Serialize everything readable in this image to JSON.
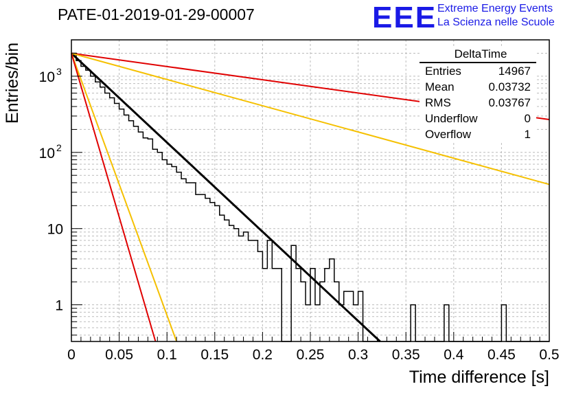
{
  "title": "PATE-01-2019-01-29-00007",
  "logo": {
    "letters": "EEE",
    "line1": "Extreme Energy Events",
    "line2": "La Scienza nelle Scuole",
    "color": "#1a1ae6"
  },
  "stats": {
    "name": "DeltaTime",
    "rows": [
      {
        "label": "Entries",
        "value": "14967"
      },
      {
        "label": "Mean",
        "value": "0.03732"
      },
      {
        "label": "RMS",
        "value": "0.03767"
      },
      {
        "label": "Underflow",
        "value": "0"
      },
      {
        "label": "Overflow",
        "value": "1"
      }
    ]
  },
  "chart_data": {
    "type": "histogram",
    "scale_y": "log",
    "xlabel": "Time difference [s]",
    "ylabel": "Entries/bin",
    "xlim": [
      0,
      0.5
    ],
    "ylim": [
      0.33,
      3000
    ],
    "grid": true,
    "x_ticks": [
      "0",
      "0.05",
      "0.1",
      "0.15",
      "0.2",
      "0.25",
      "0.3",
      "0.35",
      "0.4",
      "0.45",
      "0.5"
    ],
    "y_ticks": [
      {
        "value": 1,
        "base": "1",
        "exp": ""
      },
      {
        "value": 10,
        "base": "10",
        "exp": ""
      },
      {
        "value": 100,
        "base": "10",
        "exp": "2"
      },
      {
        "value": 1000,
        "base": "10",
        "exp": "3"
      }
    ],
    "bin_width": 0.005,
    "bin_values": [
      2000,
      1600,
      1350,
      1200,
      1000,
      840,
      720,
      600,
      520,
      440,
      370,
      310,
      260,
      220,
      185,
      155,
      150,
      110,
      100,
      80,
      70,
      65,
      55,
      45,
      40,
      40,
      28,
      28,
      25,
      22,
      20,
      15,
      13,
      11,
      10,
      8,
      9,
      7,
      7,
      5,
      5,
      4,
      4,
      3.5,
      3,
      2.5,
      2,
      2,
      1.5,
      1.5,
      1.5,
      1.5,
      1.3,
      1.1,
      1,
      0,
      0,
      0,
      0,
      0,
      0,
      0,
      0,
      0,
      0,
      0,
      0,
      0,
      0,
      0,
      0,
      0,
      0,
      0,
      0,
      0,
      0,
      0,
      0,
      0,
      0,
      0,
      0,
      0,
      0,
      0,
      0,
      0,
      0,
      0,
      0,
      0,
      0,
      0,
      0,
      0,
      0,
      0,
      0,
      0
    ],
    "bin_overrides": [
      [
        0.195,
        5
      ],
      [
        0.2,
        3
      ],
      [
        0.205,
        7
      ],
      [
        0.21,
        3
      ],
      [
        0.215,
        3
      ],
      [
        0.22,
        0
      ],
      [
        0.225,
        0.33
      ],
      [
        0.23,
        6
      ],
      [
        0.235,
        3
      ],
      [
        0.24,
        2
      ],
      [
        0.245,
        1
      ],
      [
        0.25,
        3
      ],
      [
        0.255,
        1
      ],
      [
        0.26,
        2
      ],
      [
        0.265,
        3
      ],
      [
        0.27,
        4
      ],
      [
        0.275,
        2
      ],
      [
        0.28,
        1
      ],
      [
        0.285,
        1.5
      ],
      [
        0.29,
        1.5
      ],
      [
        0.295,
        1
      ],
      [
        0.3,
        1.5
      ],
      [
        0.305,
        0
      ],
      [
        0.31,
        0
      ],
      [
        0.315,
        0
      ],
      [
        0.355,
        1
      ],
      [
        0.39,
        1
      ],
      [
        0.45,
        1
      ]
    ],
    "series": [
      {
        "color": "#000000",
        "x": [
          0,
          0.323
        ],
        "y": [
          2000,
          0.33
        ],
        "width": 3
      },
      {
        "color": "#e00000",
        "x": [
          0,
          0.5
        ],
        "y": [
          2000,
          270
        ],
        "width": 2
      },
      {
        "color": "#f5c000",
        "x": [
          0,
          0.5
        ],
        "y": [
          2000,
          38
        ],
        "width": 2
      },
      {
        "color": "#f5c000",
        "x": [
          0,
          0.11
        ],
        "y": [
          2000,
          0.33
        ],
        "width": 2
      },
      {
        "color": "#e00000",
        "x": [
          0,
          0.088
        ],
        "y": [
          2000,
          0.33
        ],
        "width": 2
      }
    ]
  }
}
